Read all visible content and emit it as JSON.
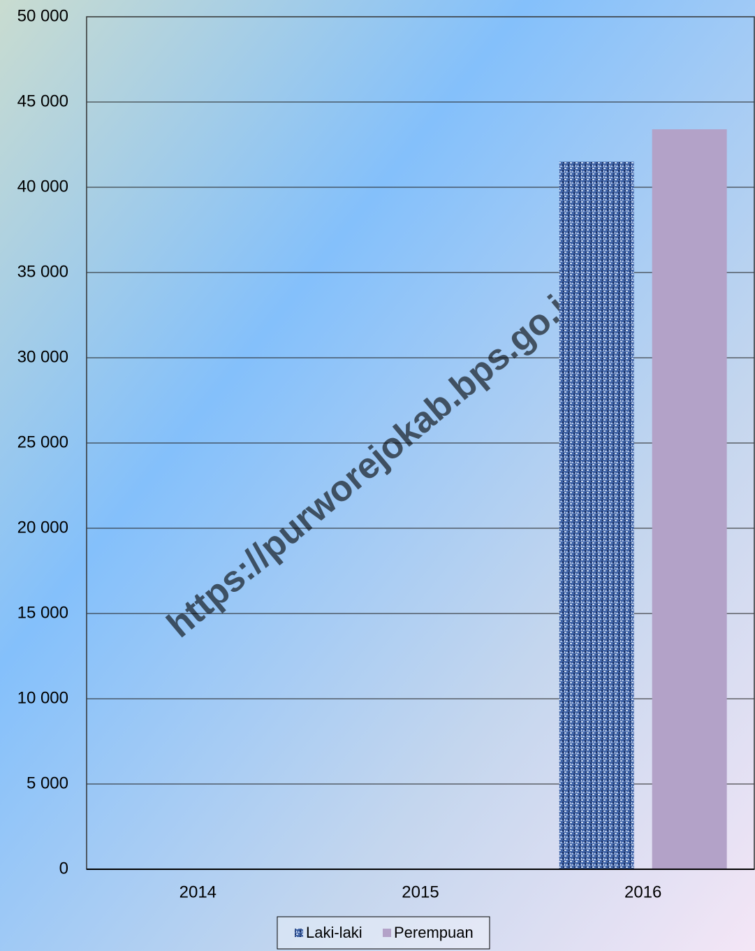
{
  "chart_data": {
    "type": "bar",
    "categories": [
      "2014",
      "2015",
      "2016"
    ],
    "series": [
      {
        "name": "Laki-laki",
        "color": "#2f4f8f",
        "values": [
          null,
          null,
          41500
        ]
      },
      {
        "name": "Perempuan",
        "color": "#b3a2c8",
        "values": [
          null,
          null,
          43400
        ]
      }
    ],
    "ylim": [
      0,
      50000
    ],
    "yticks": [
      0,
      {
        "value": 5000,
        "label": "5 000"
      },
      {
        "value": 10000,
        "label": "10 000"
      },
      {
        "value": 15000,
        "label": "15 000"
      },
      {
        "value": 20000,
        "label": "20 000"
      },
      {
        "value": 25000,
        "label": "25 000"
      },
      {
        "value": 30000,
        "label": "30 000"
      },
      {
        "value": 35000,
        "label": "35 000"
      },
      {
        "value": 40000,
        "label": "40 000"
      },
      {
        "value": 45000,
        "label": "45 000"
      },
      {
        "value": 50000,
        "label": "50 000"
      }
    ],
    "grid": true,
    "legend": "bottom",
    "watermark": "https://purworejokab.bps.go.id"
  }
}
